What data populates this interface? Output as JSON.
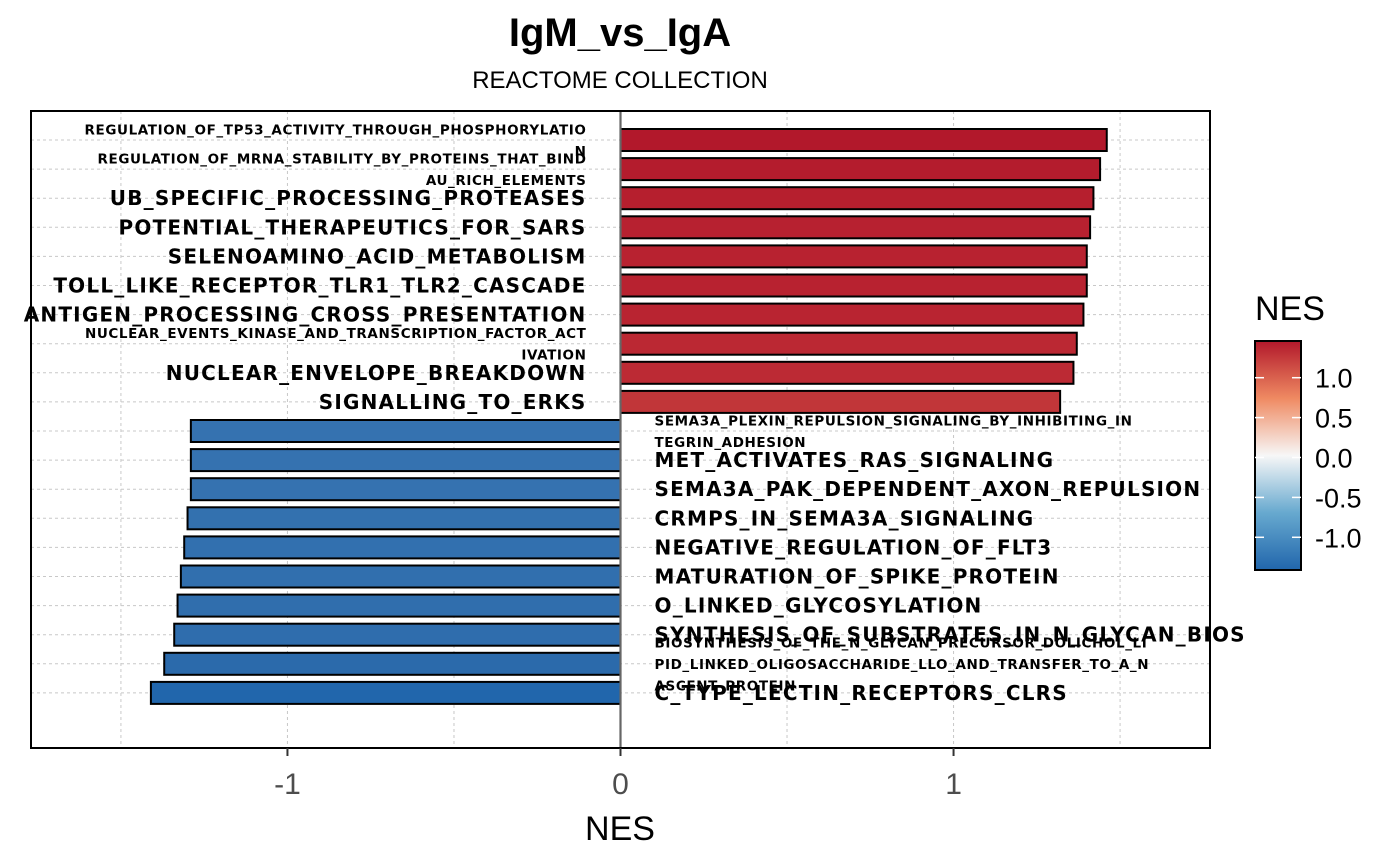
{
  "chart_data": {
    "type": "bar",
    "orientation": "horizontal",
    "title": "IgM_vs_IgA",
    "subtitle": "REACTOME COLLECTION",
    "xlabel": "NES",
    "ylabel": "",
    "xlim": [
      -1.77,
      1.77
    ],
    "xticks": [
      -1,
      0,
      1
    ],
    "xtick_labels": [
      "-1",
      "0",
      "1"
    ],
    "grid": true,
    "legend": {
      "title": "NES",
      "type": "colorbar",
      "position": "right",
      "range": [
        -1.41,
        1.46
      ],
      "ticks": [
        1.0,
        0.5,
        0.0,
        -0.5,
        -1.0
      ],
      "tick_labels": [
        "1.0",
        "0.5",
        "0.0",
        "-0.5",
        "-1.0"
      ],
      "low_color": "#2166ac",
      "mid_color": "#f7f7f7",
      "high_color": "#b2182b"
    },
    "bars": [
      {
        "label": "REGULATION_OF_TP53_ACTIVITY_THROUGH_PHOSPHORYLATIO\nN",
        "value": 1.46,
        "color": "#b2182b"
      },
      {
        "label": "REGULATION_OF_MRNA_STABILITY_BY_PROTEINS_THAT_BIND\nAU_RICH_ELEMENTS",
        "value": 1.44,
        "color": "#b41c2d"
      },
      {
        "label": "UB_SPECIFIC_PROCESSING_PROTEASES",
        "value": 1.42,
        "color": "#b61f2e"
      },
      {
        "label": "POTENTIAL_THERAPEUTICS_FOR_SARS",
        "value": 1.41,
        "color": "#b72130"
      },
      {
        "label": "SELENOAMINO_ACID_METABOLISM",
        "value": 1.4,
        "color": "#b82230"
      },
      {
        "label": "TOLL_LIKE_RECEPTOR_TLR1_TLR2_CASCADE",
        "value": 1.4,
        "color": "#b82230"
      },
      {
        "label": "ANTIGEN_PROCESSING_CROSS_PRESENTATION",
        "value": 1.39,
        "color": "#b92431"
      },
      {
        "label": "NUCLEAR_EVENTS_KINASE_AND_TRANSCRIPTION_FACTOR_ACT\nIVATION",
        "value": 1.37,
        "color": "#bb2833"
      },
      {
        "label": "NUCLEAR_ENVELOPE_BREAKDOWN",
        "value": 1.36,
        "color": "#bc2a34"
      },
      {
        "label": "SIGNALLING_TO_ERKS",
        "value": 1.32,
        "color": "#c13639"
      },
      {
        "label": "SEMA3A_PLEXIN_REPULSION_SIGNALING_BY_INHIBITING_IN\nTEGRIN_ADHESION",
        "value": -1.29,
        "color": "#3572b0"
      },
      {
        "label": "MET_ACTIVATES_RAS_SIGNALING",
        "value": -1.29,
        "color": "#3572b0"
      },
      {
        "label": "SEMA3A_PAK_DEPENDENT_AXON_REPULSION",
        "value": -1.29,
        "color": "#3572b0"
      },
      {
        "label": "CRMPS_IN_SEMA3A_SIGNALING",
        "value": -1.3,
        "color": "#3371af"
      },
      {
        "label": "NEGATIVE_REGULATION_OF_FLT3",
        "value": -1.31,
        "color": "#3270af"
      },
      {
        "label": "MATURATION_OF_SPIKE_PROTEIN",
        "value": -1.32,
        "color": "#316fae"
      },
      {
        "label": "O_LINKED_GLYCOSYLATION",
        "value": -1.33,
        "color": "#306ead"
      },
      {
        "label": "SYNTHESIS_OF_SUBSTRATES_IN_N_GLYCAN_BIOS",
        "value": -1.34,
        "color": "#2f6dad"
      },
      {
        "label": "BIOSYNTHESIS_OF_THE_N_GLYCAN_PRECURSOR_DOLICHOL_LI\nPID_LINKED_OLIGOSACCHARIDE_LLO_AND_TRANSFER_TO_A_N\nASCENT_PROTEIN",
        "value": -1.37,
        "color": "#2b6aab"
      },
      {
        "label": "C_TYPE_LECTIN_RECEPTORS_CLRS",
        "value": -1.41,
        "color": "#2166ac"
      }
    ]
  }
}
